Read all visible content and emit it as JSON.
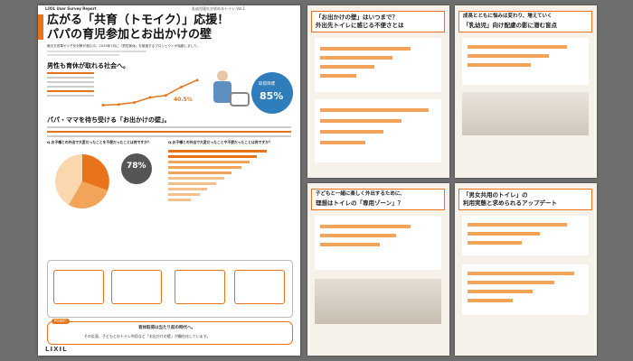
{
  "cover": {
    "brand": "LIXIL User Survey Report",
    "masthead": "乳幼児連れが求めるトイレ Vol.1",
    "title_line1": "広がる「共育（トモイク）」応援！",
    "title_line2": "パパの育児参加とお出かけの壁",
    "lead": "働き方改革や少子化対策が進む中、2025年7月に「男性育休」を推進するプロジェクトが始動しました。",
    "section1": "男性も育休が取れる社会へ。",
    "stat_percent": "40.5%",
    "stat_badge_label": "取得目標",
    "stat_badge_value": "85%",
    "section2": "パパ・ママを待ち受ける「お出かけの壁」。",
    "q1": "Q.お子様との外出で大変だったことを不便だったことは何ですか？",
    "q2": "Q.お子様との外出で大変だったことや不便だったことは何ですか？",
    "donut_value": "78%",
    "point_label": "POINT!",
    "point_text1": "育休取得は当たり前の時代へ。",
    "point_text2": "その反面、子どもとのトイレ利用など「お出かけの壁」が顕在化しています。",
    "logo": "LIXIL"
  },
  "pages": {
    "p1_title1": "「お出かけの壁」はいつまで？",
    "p1_title2": "外出先トイレに感じる不便さとは",
    "p2_title1": "成長とともに悩みは変わり、増えていく",
    "p2_title2": "「乳幼児」向け配慮の影に潜む盲点",
    "p3_title1": "子どもと一緒に楽しく外出するために、",
    "p3_title2": "理想はトイレの「専用ゾーン」？",
    "p4_title1": "「男女共用のトイレ」の",
    "p4_title2": "利用実態と求められるアップデート"
  },
  "colors": {
    "accent": "#e8731a",
    "bar": "#f2a45a"
  },
  "chart_data": {
    "type": "line",
    "title": "",
    "series": [
      {
        "name": "",
        "values": [
          2.0,
          3.2,
          6.2,
          13.9,
          17.1,
          30.1,
          40.5
        ]
      }
    ],
    "ylabel": "",
    "xlabel": ""
  }
}
